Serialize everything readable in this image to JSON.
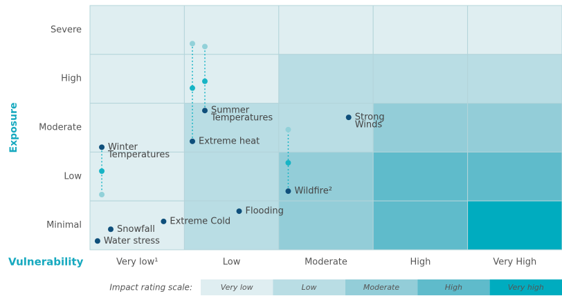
{
  "chart_data": {
    "type": "scatter",
    "x_label": "Vulnerability",
    "y_label": "Exposure",
    "categories": [
      "Very low¹",
      "Low",
      "Moderate",
      "High",
      "Very High"
    ],
    "y_categories": [
      "Minimal",
      "Low",
      "Moderate",
      "High",
      "Severe"
    ],
    "xlim": [
      0,
      5
    ],
    "ylim": [
      0,
      5
    ],
    "levels": [
      "Very low",
      "Low",
      "Moderate",
      "High",
      "Very high"
    ],
    "level_colors": [
      "#dfeef1",
      "#b9dde4",
      "#93cdd8",
      "#5fbbcb",
      "#00acbf"
    ],
    "matrix": [
      [
        0,
        0,
        0,
        0,
        0
      ],
      [
        0,
        0,
        1,
        1,
        1
      ],
      [
        0,
        1,
        1,
        2,
        2
      ],
      [
        0,
        1,
        2,
        3,
        3
      ],
      [
        0,
        1,
        2,
        3,
        4
      ]
    ],
    "legend_title": "Impact rating scale:",
    "point_color": "#0f4f7b",
    "projection_colors": [
      "#17b4c5",
      "#92d1d9"
    ],
    "points": [
      {
        "label": [
          "Winter",
          "Temperatures"
        ],
        "x": 0.125,
        "y": 2.1,
        "projections": [
          1.61,
          1.13
        ]
      },
      {
        "label": [
          "Extreme heat"
        ],
        "x": 1.085,
        "y": 2.22,
        "projections": [
          3.31,
          4.22
        ]
      },
      {
        "label": [
          "Summer",
          "Temperatures"
        ],
        "x": 1.217,
        "y": 2.85,
        "projections": [
          3.45,
          4.16
        ]
      },
      {
        "label": [
          "Strong",
          "Winds"
        ],
        "x": 2.74,
        "y": 2.71
      },
      {
        "label": [
          "Wildfire²"
        ],
        "x": 2.1,
        "y": 1.2,
        "projections": [
          1.78,
          2.46
        ]
      },
      {
        "label": [
          "Flooding"
        ],
        "x": 1.58,
        "y": 0.79
      },
      {
        "label": [
          "Extreme Cold"
        ],
        "x": 0.78,
        "y": 0.58
      },
      {
        "label": [
          "Snowfall"
        ],
        "x": 0.22,
        "y": 0.42
      },
      {
        "label": [
          "Water stress"
        ],
        "x": 0.08,
        "y": 0.18
      }
    ]
  }
}
